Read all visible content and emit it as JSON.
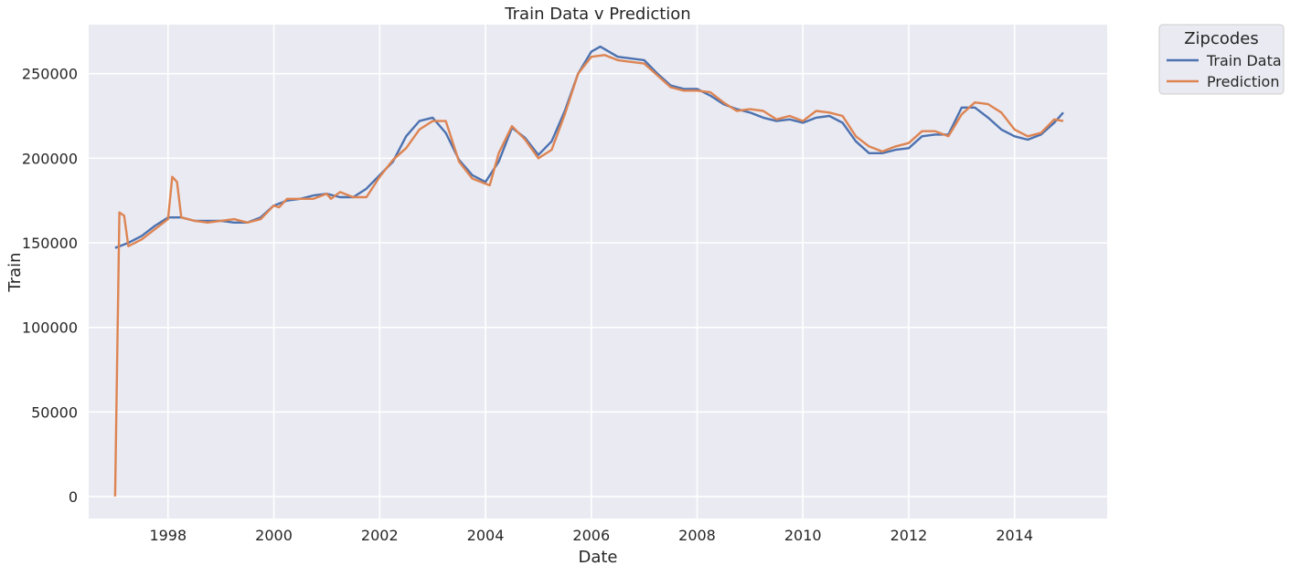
{
  "chart_data": {
    "type": "line",
    "title": "Train Data v Prediction",
    "xlabel": "Date",
    "ylabel": "Train",
    "xlim": [
      1996.5,
      2015.75
    ],
    "ylim": [
      -13000,
      279000
    ],
    "grid": true,
    "legend": {
      "title": "Zipcodes",
      "position": "outside-top-right"
    },
    "x_ticks": [
      1998,
      2000,
      2002,
      2004,
      2006,
      2008,
      2010,
      2012,
      2014
    ],
    "y_ticks": [
      0,
      50000,
      100000,
      150000,
      200000,
      250000
    ],
    "x_tick_labels": [
      "1998",
      "2000",
      "2002",
      "2004",
      "2006",
      "2008",
      "2010",
      "2012",
      "2014"
    ],
    "y_tick_labels": [
      "0",
      "50000",
      "100000",
      "150000",
      "200000",
      "250000"
    ],
    "colors": {
      "Train Data": "#4c72b0",
      "Prediction": "#dd8452",
      "background": "#eaeaf2",
      "grid": "#ffffff"
    },
    "series": [
      {
        "name": "Train Data",
        "color": "#4c72b0",
        "x": [
          1997.0,
          1997.25,
          1997.5,
          1997.75,
          1998.0,
          1998.25,
          1998.5,
          1998.75,
          1999.0,
          1999.25,
          1999.5,
          1999.75,
          2000.0,
          2000.25,
          2000.5,
          2000.75,
          2001.0,
          2001.25,
          2001.5,
          2001.75,
          2002.0,
          2002.25,
          2002.5,
          2002.75,
          2003.0,
          2003.25,
          2003.5,
          2003.75,
          2004.0,
          2004.25,
          2004.5,
          2004.75,
          2005.0,
          2005.25,
          2005.5,
          2005.75,
          2006.0,
          2006.17,
          2006.5,
          2006.75,
          2007.0,
          2007.25,
          2007.5,
          2007.75,
          2008.0,
          2008.25,
          2008.5,
          2008.75,
          2009.0,
          2009.25,
          2009.5,
          2009.75,
          2010.0,
          2010.25,
          2010.5,
          2010.75,
          2011.0,
          2011.25,
          2011.5,
          2011.75,
          2012.0,
          2012.25,
          2012.5,
          2012.75,
          2013.0,
          2013.25,
          2013.5,
          2013.75,
          2014.0,
          2014.25,
          2014.5,
          2014.75,
          2014.92
        ],
        "y": [
          147000,
          150000,
          154000,
          160000,
          165000,
          165000,
          163000,
          163000,
          163000,
          162000,
          162000,
          165000,
          172000,
          175000,
          176000,
          178000,
          179000,
          177000,
          177000,
          182000,
          190000,
          198000,
          213000,
          222000,
          224000,
          215000,
          199000,
          190000,
          186000,
          198000,
          218000,
          212000,
          202000,
          210000,
          228000,
          250000,
          263000,
          266000,
          260000,
          259000,
          258000,
          250000,
          243000,
          241000,
          241000,
          237000,
          232000,
          229000,
          227000,
          224000,
          222000,
          223000,
          221000,
          224000,
          225000,
          221000,
          210000,
          203000,
          203000,
          205000,
          206000,
          213000,
          214000,
          214000,
          230000,
          230000,
          224000,
          217000,
          213000,
          211000,
          214000,
          221000,
          227000
        ]
      },
      {
        "name": "Prediction",
        "color": "#dd8452",
        "x": [
          1997.0,
          1997.08,
          1997.17,
          1997.25,
          1997.5,
          1997.75,
          1998.0,
          1998.08,
          1998.17,
          1998.25,
          1998.5,
          1998.75,
          1999.0,
          1999.25,
          1999.5,
          1999.75,
          2000.0,
          2000.1,
          2000.25,
          2000.5,
          2000.75,
          2001.0,
          2001.08,
          2001.25,
          2001.5,
          2001.75,
          2002.0,
          2002.25,
          2002.5,
          2002.75,
          2003.0,
          2003.25,
          2003.5,
          2003.75,
          2004.0,
          2004.08,
          2004.25,
          2004.5,
          2004.75,
          2005.0,
          2005.25,
          2005.5,
          2005.75,
          2006.0,
          2006.25,
          2006.5,
          2006.75,
          2007.0,
          2007.25,
          2007.5,
          2007.75,
          2008.0,
          2008.25,
          2008.5,
          2008.75,
          2009.0,
          2009.25,
          2009.5,
          2009.75,
          2010.0,
          2010.25,
          2010.5,
          2010.75,
          2011.0,
          2011.25,
          2011.5,
          2011.75,
          2012.0,
          2012.25,
          2012.5,
          2012.75,
          2013.0,
          2013.25,
          2013.5,
          2013.75,
          2014.0,
          2014.25,
          2014.5,
          2014.75,
          2014.92
        ],
        "y": [
          0,
          168000,
          166000,
          148000,
          152000,
          158000,
          164000,
          189000,
          186000,
          165000,
          163000,
          162000,
          163000,
          164000,
          162000,
          164000,
          172000,
          171000,
          176000,
          176000,
          176000,
          179000,
          176000,
          180000,
          177000,
          177000,
          189000,
          199000,
          206000,
          217000,
          222000,
          222000,
          198000,
          188000,
          185000,
          184000,
          203000,
          219000,
          211000,
          200000,
          205000,
          226000,
          250000,
          260000,
          261000,
          258000,
          257000,
          256000,
          249000,
          242000,
          240000,
          240000,
          239000,
          233000,
          228000,
          229000,
          228000,
          223000,
          225000,
          222000,
          228000,
          227000,
          225000,
          213000,
          207000,
          204000,
          207000,
          209000,
          216000,
          216000,
          213000,
          226000,
          233000,
          232000,
          227000,
          217000,
          213000,
          215000,
          223000,
          222000
        ]
      }
    ]
  }
}
